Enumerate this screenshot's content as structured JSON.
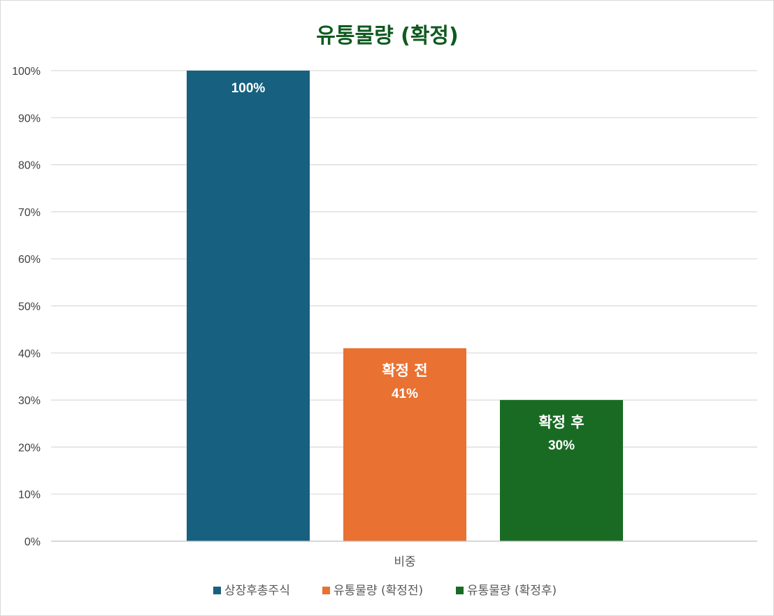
{
  "chart_data": {
    "type": "bar",
    "title": "유통물량 (확정)",
    "categories": [
      "비중"
    ],
    "xlabel": "",
    "ylabel": "",
    "ylim": [
      0,
      100
    ],
    "y_unit": "%",
    "yticks": [
      "0%",
      "10%",
      "20%",
      "30%",
      "40%",
      "50%",
      "60%",
      "70%",
      "80%",
      "90%",
      "100%"
    ],
    "grid": true,
    "legend_position": "bottom",
    "series": [
      {
        "name": "상장후총주식",
        "values": [
          100
        ],
        "bar_label": "",
        "value_label": "100%",
        "color": "#17607f"
      },
      {
        "name": "유통물량 (확정전)",
        "values": [
          41
        ],
        "bar_label": "확정 전",
        "value_label": "41%",
        "color": "#e97132"
      },
      {
        "name": "유통물량 (확정후)",
        "values": [
          30
        ],
        "bar_label": "확정 후",
        "value_label": "30%",
        "color": "#196b24"
      }
    ]
  },
  "colors": {
    "title": "#0f5a1f",
    "grid": "#d9d9d9",
    "axis": "#bfbfbf"
  }
}
